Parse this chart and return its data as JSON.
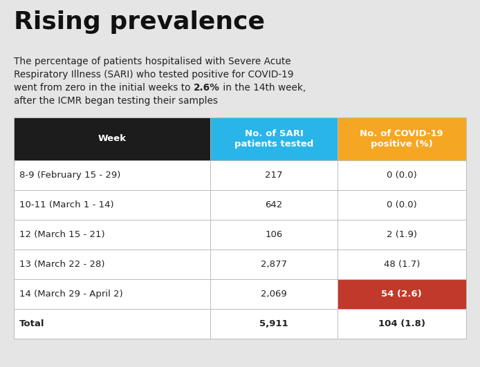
{
  "title": "Rising prevalence",
  "header_col1": "Week",
  "header_col2": "No. of SARI\npatients tested",
  "header_col3": "No. of COVID-19\npositive (%)",
  "header_col1_bg": "#1c1c1c",
  "header_col2_bg": "#29b5e8",
  "header_col3_bg": "#f5a623",
  "header_text_color": "#ffffff",
  "rows": [
    {
      "week": "8-9 (February 15 - 29)",
      "sari": "217",
      "covid": "0 (0.0)",
      "highlight": false
    },
    {
      "week": "10-11 (March 1 - 14)",
      "sari": "642",
      "covid": "0 (0.0)",
      "highlight": false
    },
    {
      "week": "12 (March 15 - 21)",
      "sari": "106",
      "covid": "2 (1.9)",
      "highlight": false
    },
    {
      "week": "13 (March 22 - 28)",
      "sari": "2,877",
      "covid": "48 (1.7)",
      "highlight": false
    },
    {
      "week": "14 (March 29 - April 2)",
      "sari": "2,069",
      "covid": "54 (2.6)",
      "highlight": true
    }
  ],
  "total_row": {
    "week": "Total",
    "sari": "5,911",
    "covid": "104 (1.8)"
  },
  "highlight_color": "#c0392b",
  "highlight_text_color": "#ffffff",
  "row_bg": "#ffffff",
  "border_color": "#bbbbbb",
  "background_color": "#e5e5e5",
  "text_color": "#222222",
  "subtitle_line1": "The percentage of patients hospitalised with Severe Acute",
  "subtitle_line2": "Respiratory Illness (SARI) who tested positive for COVID-19",
  "subtitle_line3_pre": "went from zero in the initial weeks to ",
  "subtitle_line3_bold": "2.6%",
  "subtitle_line3_post": " in the 14th week,",
  "subtitle_line4": "after the ICMR began testing their samples"
}
